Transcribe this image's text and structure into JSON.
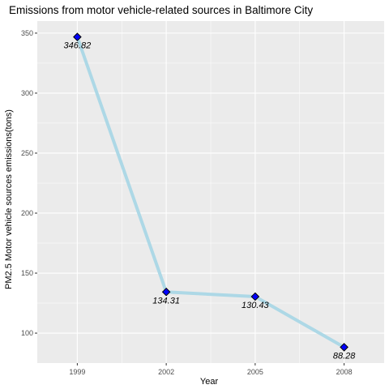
{
  "chart_data": {
    "type": "line",
    "title": "Emissions from motor vehicle-related sources in Baltimore City",
    "xlabel": "Year",
    "ylabel": "PM2.5 Motor vehicle sources emissions(tons)",
    "x": [
      1999,
      2002,
      2005,
      2008
    ],
    "values": [
      346.82,
      134.31,
      130.43,
      88.28
    ],
    "data_labels": [
      "346.82",
      "134.31",
      "130.43",
      "88.28"
    ],
    "x_ticks": [
      "1999",
      "2002",
      "2005",
      "2008"
    ],
    "y_ticks": [
      100,
      150,
      200,
      250,
      300,
      350
    ],
    "y_tick_labels": [
      "100",
      "150",
      "200",
      "250",
      "300",
      "350"
    ],
    "xlim": [
      1997.65,
      2009.35
    ],
    "ylim": [
      75.05,
      360.05
    ],
    "grid": true,
    "legend": "none",
    "colors": {
      "panel": "#ebebeb",
      "grid": "#ffffff",
      "line": "#add8e6",
      "marker_fill": "#0000ff",
      "marker_stroke": "#000000"
    }
  }
}
